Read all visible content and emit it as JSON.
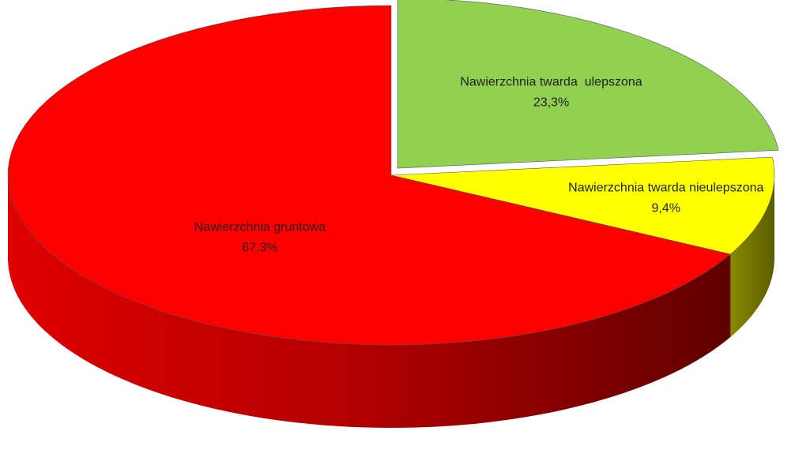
{
  "chart_data": {
    "type": "pie",
    "categories": [
      "Nawierzchnia twarda  ulepszona",
      "Nawierzchnia twarda nieulepszona",
      "Nawierzchnia gruntowa"
    ],
    "values": [
      23.3,
      9.4,
      67.3
    ],
    "value_labels": [
      "23,3%",
      "9,4%",
      "67,3%"
    ],
    "colors": [
      "#92d050",
      "#ffff00",
      "#ff0000"
    ]
  }
}
